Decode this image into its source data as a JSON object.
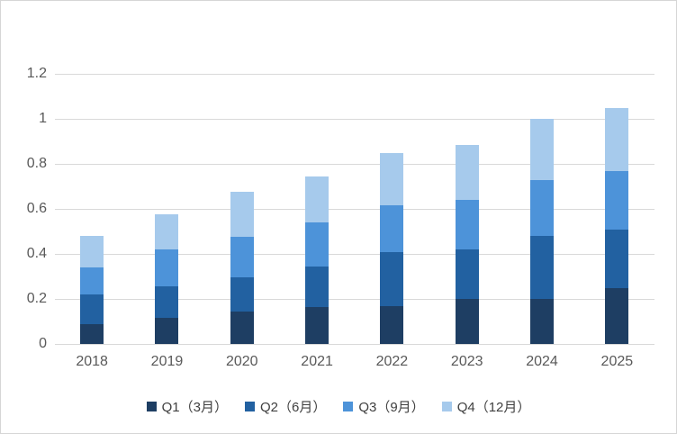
{
  "chart_data": {
    "type": "bar",
    "stacked": true,
    "title": "",
    "xlabel": "",
    "ylabel": "",
    "categories": [
      "2018",
      "2019",
      "2020",
      "2021",
      "2022",
      "2023",
      "2024",
      "2025"
    ],
    "series": [
      {
        "name": "Q1（3月）",
        "color": "#1E3E63",
        "values": [
          0.09,
          0.115,
          0.145,
          0.165,
          0.17,
          0.2,
          0.2,
          0.25
        ]
      },
      {
        "name": "Q2（6月）",
        "color": "#2261A1",
        "values": [
          0.13,
          0.14,
          0.15,
          0.18,
          0.24,
          0.22,
          0.28,
          0.26
        ]
      },
      {
        "name": "Q3（9月）",
        "color": "#4D93D9",
        "values": [
          0.12,
          0.165,
          0.18,
          0.195,
          0.205,
          0.22,
          0.25,
          0.26
        ]
      },
      {
        "name": "Q4（12月）",
        "color": "#A6CAEC",
        "values": [
          0.14,
          0.155,
          0.2,
          0.205,
          0.235,
          0.245,
          0.27,
          0.28
        ]
      }
    ],
    "totals": [
      0.48,
      0.575,
      0.675,
      0.745,
      0.85,
      0.885,
      1.0,
      1.05
    ],
    "ylim": [
      0,
      1.2
    ],
    "yticks": [
      0,
      0.2,
      0.4,
      0.6,
      0.8,
      1,
      1.2
    ],
    "ytick_labels": [
      "0",
      "0.2",
      "0.4",
      "0.6",
      "0.8",
      "1",
      "1.2"
    ],
    "grid": true,
    "legend_position": "bottom"
  },
  "colors": {
    "gridline": "#D9D9D9",
    "axis_text": "#595959",
    "legend_text": "#3F3F3F",
    "frame_border": "#D6D6D6",
    "background": "#FFFFFF"
  }
}
